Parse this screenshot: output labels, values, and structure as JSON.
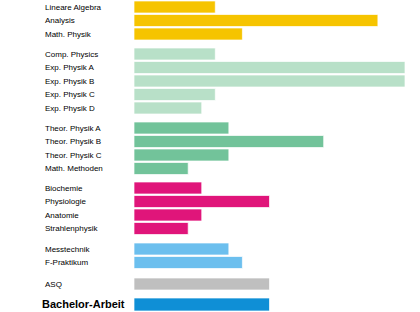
{
  "chart_data": [
    {
      "type": "bar",
      "orientation": "horizontal",
      "categories": [
        "Lineare Algebra",
        "Analysis",
        "Math. Physik"
      ],
      "values": [
        6,
        18,
        8
      ],
      "color": "#f6c400",
      "xlim": [
        0,
        20
      ],
      "tick_labels": "y"
    },
    {
      "type": "bar",
      "orientation": "horizontal",
      "categories": [
        "Comp. Physics",
        "Exp. Physik A",
        "Exp. Physik B",
        "Exp. Physik C",
        "Exp. Physik D"
      ],
      "values": [
        6,
        20,
        20,
        6,
        5
      ],
      "color": "#b8e0c8",
      "xlim": [
        0,
        20
      ],
      "tick_labels": "y"
    },
    {
      "type": "bar",
      "orientation": "horizontal",
      "categories": [
        "Theor. Physik A",
        "Theor. Physik B",
        "Theor. Physik C",
        "Math. Methoden"
      ],
      "values": [
        7,
        14,
        7,
        4
      ],
      "color": "#72c39a",
      "xlim": [
        0,
        20
      ],
      "tick_labels": "y"
    },
    {
      "type": "bar",
      "orientation": "horizontal",
      "categories": [
        "Biochemie",
        "Physiologie",
        "Anatomie",
        "Strahlenphysik"
      ],
      "values": [
        5,
        10,
        5,
        4
      ],
      "color": "#e0157a",
      "xlim": [
        0,
        20
      ],
      "tick_labels": "y"
    },
    {
      "type": "bar",
      "orientation": "horizontal",
      "categories": [
        "Messtechnik",
        "F-Praktikum"
      ],
      "values": [
        7,
        8
      ],
      "color": "#6cbfee",
      "xlim": [
        0,
        20
      ],
      "tick_labels": "y"
    },
    {
      "type": "bar",
      "orientation": "horizontal",
      "categories": [
        "ASQ"
      ],
      "values": [
        10
      ],
      "color": "#bfbfbf",
      "xlim": [
        0,
        20
      ],
      "tick_labels": "y"
    },
    {
      "type": "bar",
      "orientation": "horizontal",
      "categories": [
        "Bachelor-Arbeit"
      ],
      "values": [
        10
      ],
      "color": "#0f8fd6",
      "xlim": [
        0,
        20
      ],
      "tick_labels": "y"
    }
  ]
}
